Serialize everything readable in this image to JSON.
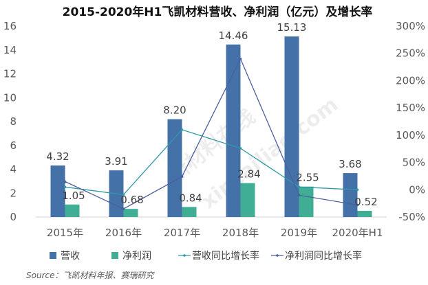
{
  "watermark": {
    "text_cn": "新材料在线",
    "text_en": "xincailiao.com"
  },
  "source": "Source：飞凯材料年报、赛瑞研究",
  "chart_data": {
    "type": "bar",
    "title": "2015-2020年H1飞凯材料营收、净利润（亿元）及增长率",
    "categories": [
      "2015年",
      "2016年",
      "2017年",
      "2018年",
      "2019年",
      "2020年H1"
    ],
    "y_left": {
      "ylim": [
        0,
        16
      ],
      "ticks": [
        0,
        2,
        4,
        6,
        8,
        10,
        12,
        14,
        16
      ]
    },
    "y_right": {
      "ylim": [
        -0.5,
        3.0
      ],
      "ticks": [
        "-50%",
        "0%",
        "50%",
        "100%",
        "150%",
        "200%",
        "250%",
        "300%"
      ],
      "tick_values": [
        -0.5,
        0,
        0.5,
        1.0,
        1.5,
        2.0,
        2.5,
        3.0
      ]
    },
    "grid": false,
    "legend_placement": "bottom",
    "series": [
      {
        "name": "营收",
        "type": "bar",
        "axis": "left",
        "color": "#4472a8",
        "values": [
          4.32,
          3.91,
          8.2,
          14.46,
          15.13,
          3.68
        ],
        "labels": [
          "4.32",
          "3.91",
          "8.20",
          "14.46",
          "15.13",
          "3.68"
        ]
      },
      {
        "name": "净利润",
        "type": "bar",
        "axis": "left",
        "color": "#3fae94",
        "values": [
          1.05,
          0.68,
          0.84,
          2.84,
          2.55,
          0.52
        ],
        "labels": [
          "1.05",
          "0.68",
          "0.84",
          "2.84",
          "2.55",
          "0.52"
        ]
      },
      {
        "name": "营收同比增长率",
        "type": "line",
        "axis": "right",
        "color": "#2e9aa6",
        "values": [
          0.05,
          -0.09,
          1.1,
          0.76,
          0.05,
          0.0
        ]
      },
      {
        "name": "净利润同比增长率",
        "type": "line",
        "axis": "right",
        "color": "#4a5f9e",
        "values": [
          0.15,
          -0.35,
          0.24,
          2.4,
          -0.1,
          -0.28
        ]
      }
    ]
  }
}
